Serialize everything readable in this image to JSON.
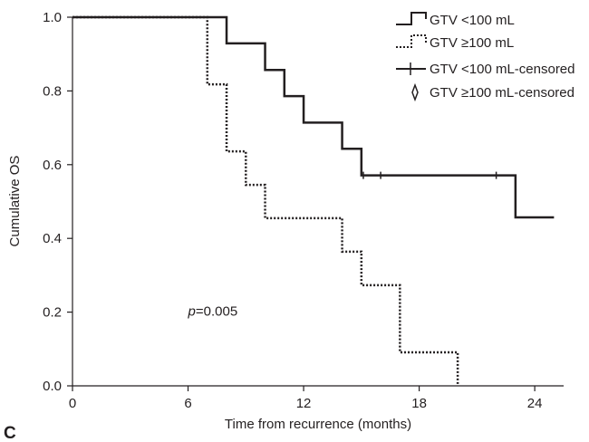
{
  "chart_data": {
    "type": "line",
    "subtype": "kaplan-meier step",
    "panel_label": "C",
    "xlabel": "Time from recurrence (months)",
    "ylabel": "Cumulative OS",
    "xlim": [
      0,
      25.5
    ],
    "ylim": [
      0,
      1.0
    ],
    "x_ticks": [
      0,
      6,
      12,
      18,
      24
    ],
    "y_ticks": [
      0.0,
      0.2,
      0.4,
      0.6,
      0.8,
      1.0
    ],
    "x_tick_labels": [
      "0",
      "6",
      "12",
      "18",
      "24"
    ],
    "y_tick_labels": [
      "0.0",
      "0.2",
      "0.4",
      "0.6",
      "0.8",
      "1.0"
    ],
    "grid": false,
    "legend_position": "top-right",
    "annotation": {
      "italic": "p",
      "rest": "=0.005",
      "x": 6,
      "y": 0.19
    },
    "series": [
      {
        "name": "GTV <100 mL",
        "line_style": "solid",
        "color": "#231f20",
        "steps": [
          [
            0,
            1.0
          ],
          [
            8,
            0.929
          ],
          [
            10,
            0.857
          ],
          [
            11,
            0.786
          ],
          [
            12,
            0.714
          ],
          [
            14,
            0.643
          ],
          [
            15,
            0.571
          ],
          [
            23,
            0.457
          ]
        ],
        "end_x": 25,
        "censored": [
          [
            15.1,
            0.571
          ],
          [
            16,
            0.571
          ],
          [
            22,
            0.571
          ]
        ]
      },
      {
        "name": "GTV ≥100 mL",
        "line_style": "dotted",
        "color": "#231f20",
        "steps": [
          [
            0,
            1.0
          ],
          [
            7,
            0.818
          ],
          [
            8,
            0.636
          ],
          [
            9,
            0.545
          ],
          [
            10,
            0.455
          ],
          [
            14,
            0.364
          ],
          [
            15,
            0.273
          ],
          [
            17,
            0.091
          ],
          [
            20,
            0.0
          ]
        ],
        "end_x": 20,
        "censored": []
      }
    ],
    "legend": [
      {
        "label": "GTV <100 mL",
        "symbol": "solid-step"
      },
      {
        "label": "GTV ≥100 mL",
        "symbol": "dotted-step"
      },
      {
        "label": "GTV <100 mL-censored",
        "symbol": "plus"
      },
      {
        "label": "GTV ≥100 mL-censored",
        "symbol": "diamond"
      }
    ]
  }
}
